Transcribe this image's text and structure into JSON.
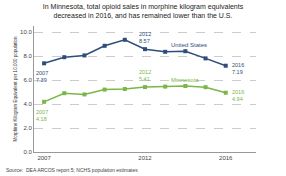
{
  "chart_data": {
    "type": "line",
    "title": "In Minnesota, total opioid sales in morphine kilogram equivalents\ndecreased in 2016, and has remained lower than the U.S.",
    "y_label": "Morphine Kilogram Equivalent per 10,000 population",
    "x": [
      2007,
      2008,
      2009,
      2010,
      2011,
      2012,
      2013,
      2014,
      2015,
      2016
    ],
    "series": [
      {
        "name": "United States",
        "color": "#2e4d7b",
        "marker": "square",
        "values": [
          7.39,
          7.9,
          8.05,
          8.85,
          9.35,
          8.57,
          8.35,
          8.4,
          7.8,
          7.19
        ]
      },
      {
        "name": "Minnesota",
        "color": "#7ab648",
        "marker": "square",
        "values": [
          4.18,
          4.9,
          4.8,
          5.2,
          5.25,
          5.41,
          5.45,
          5.5,
          5.4,
          4.94
        ]
      }
    ],
    "xlim": [
      2006.5,
      2017.5
    ],
    "xticks": [
      2007,
      2012,
      2016
    ],
    "ylim": [
      0.0,
      10.5
    ],
    "yticks": [
      {
        "value": 0.0,
        "label": "0.0"
      },
      {
        "value": 2.0,
        "label": "2.0"
      },
      {
        "value": 4.0,
        "label": "4.0"
      },
      {
        "value": 6.0,
        "label": "6.0"
      },
      {
        "value": 8.0,
        "label": "8.0"
      },
      {
        "value": 10.0,
        "label": "10.0"
      }
    ],
    "grid": true,
    "annotations": [
      {
        "series": "United States",
        "x": 2007,
        "y": 7.39,
        "text": "2007\n7.39"
      },
      {
        "series": "United States",
        "x": 2012,
        "y": 8.57,
        "text": "2012\n8.57"
      },
      {
        "series": "United States",
        "x": 2016,
        "y": 7.19,
        "text": "2016\n7.19"
      },
      {
        "series": "Minnesota",
        "x": 2007,
        "y": 4.18,
        "text": "2007\n4.18"
      },
      {
        "series": "Minnesota",
        "x": 2012,
        "y": 5.41,
        "text": "2012\n5.41"
      },
      {
        "series": "Minnesota",
        "x": 2016,
        "y": 4.94,
        "text": "2016\n4.94"
      },
      {
        "text": "Source:  DEA ARCOS report 5; NCHS population estimates"
      }
    ]
  }
}
